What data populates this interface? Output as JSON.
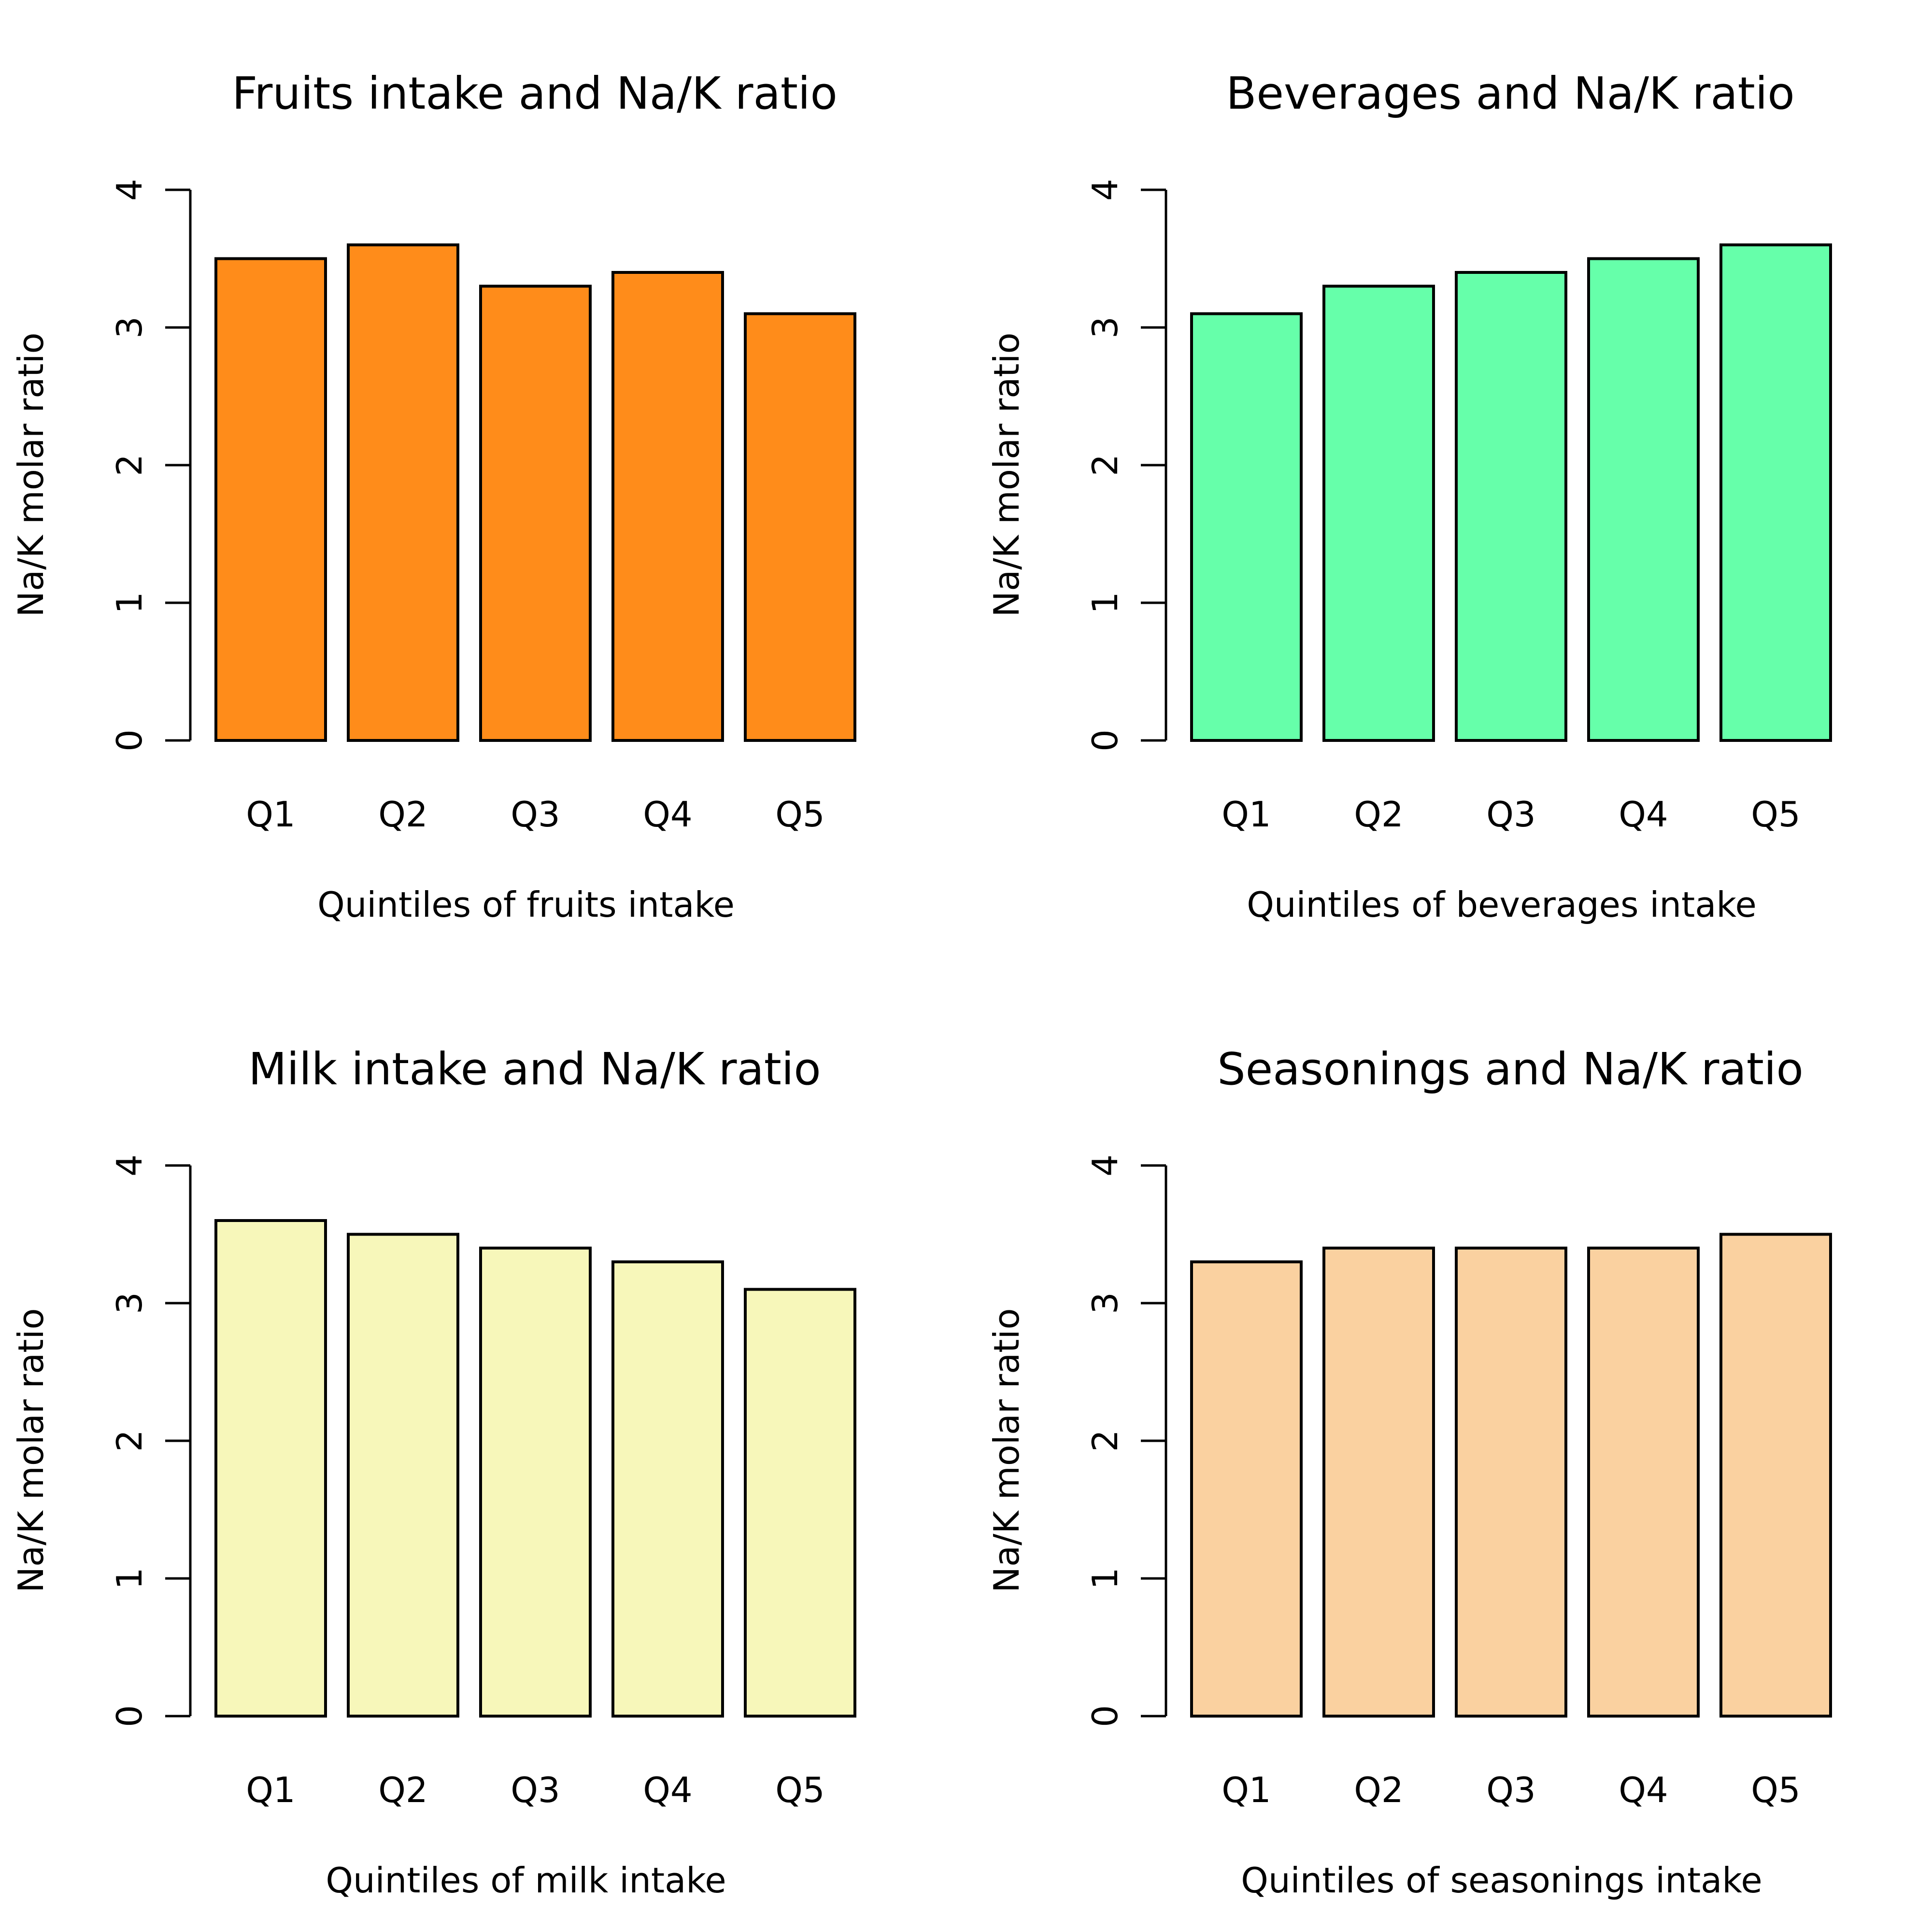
{
  "chart_data": [
    {
      "type": "bar",
      "title": "Fruits intake and Na/K ratio",
      "xlabel": "Quintiles of fruits intake",
      "ylabel": "Na/K molar ratio",
      "categories": [
        "Q1",
        "Q2",
        "Q3",
        "Q4",
        "Q5"
      ],
      "values": [
        3.5,
        3.6,
        3.3,
        3.4,
        3.1
      ],
      "yticks": [
        "0",
        "1",
        "2",
        "3",
        "4"
      ],
      "ylim": [
        0,
        4
      ],
      "color": "#FF8C1A",
      "grid": false
    },
    {
      "type": "bar",
      "title": "Beverages and Na/K ratio",
      "xlabel": "Quintiles of beverages intake",
      "ylabel": "Na/K molar ratio",
      "categories": [
        "Q1",
        "Q2",
        "Q3",
        "Q4",
        "Q5"
      ],
      "values": [
        3.1,
        3.3,
        3.4,
        3.5,
        3.6
      ],
      "yticks": [
        "0",
        "1",
        "2",
        "3",
        "4"
      ],
      "ylim": [
        0,
        4
      ],
      "color": "#66FFAA",
      "grid": false
    },
    {
      "type": "bar",
      "title": "Milk intake and Na/K ratio",
      "xlabel": "Quintiles of milk intake",
      "ylabel": "Na/K molar ratio",
      "categories": [
        "Q1",
        "Q2",
        "Q3",
        "Q4",
        "Q5"
      ],
      "values": [
        3.6,
        3.5,
        3.4,
        3.3,
        3.1
      ],
      "yticks": [
        "0",
        "1",
        "2",
        "3",
        "4"
      ],
      "ylim": [
        0,
        4
      ],
      "color": "#F7F7BA",
      "grid": false
    },
    {
      "type": "bar",
      "title": "Seasonings and Na/K ratio",
      "xlabel": "Quintiles of seasonings intake",
      "ylabel": "Na/K molar ratio",
      "categories": [
        "Q1",
        "Q2",
        "Q3",
        "Q4",
        "Q5"
      ],
      "values": [
        3.3,
        3.4,
        3.4,
        3.4,
        3.5
      ],
      "yticks": [
        "0",
        "1",
        "2",
        "3",
        "4"
      ],
      "ylim": [
        0,
        4
      ],
      "color": "#FAD1A0",
      "grid": false
    }
  ]
}
